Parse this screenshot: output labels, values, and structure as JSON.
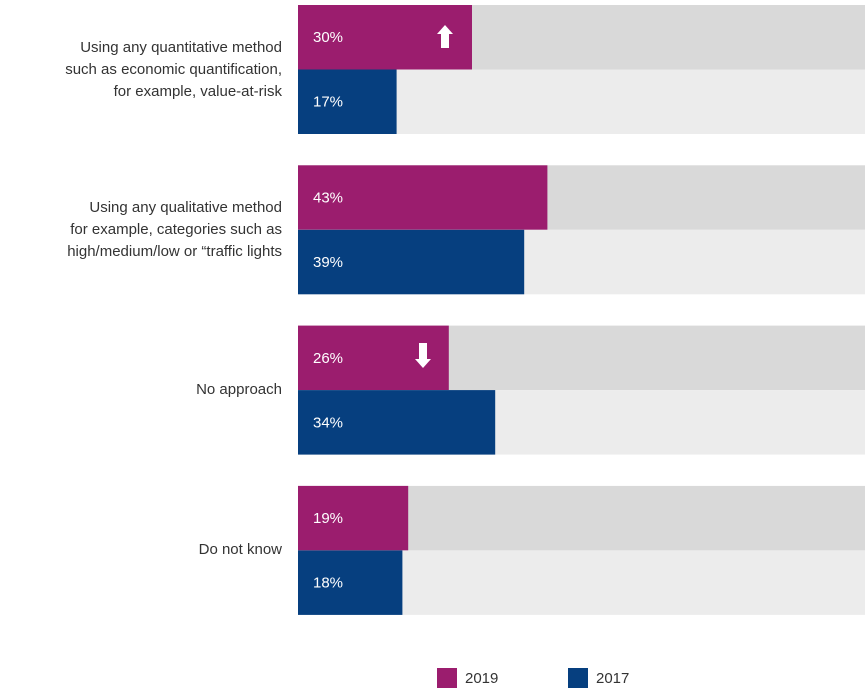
{
  "chart_data": {
    "type": "bar",
    "orientation": "horizontal",
    "categories": [
      "Using any quantitative method\nsuch as economic quantification,\nfor example, value-at-risk",
      "Using any qualitative method\nfor example, categories such as\nhigh/medium/low or “traffic lights",
      "No approach",
      "Do not know"
    ],
    "series": [
      {
        "name": "2019",
        "color": "#9b1d6e",
        "values": [
          30,
          43,
          26,
          19
        ],
        "value_labels": [
          "30%",
          "43%",
          "26%",
          "19%"
        ]
      },
      {
        "name": "2017",
        "color": "#063f7f",
        "values": [
          17,
          39,
          34,
          18
        ],
        "value_labels": [
          "17%",
          "39%",
          "34%",
          "18%"
        ]
      }
    ],
    "xlim": [
      0,
      100
    ],
    "legend": "bottom"
  }
}
